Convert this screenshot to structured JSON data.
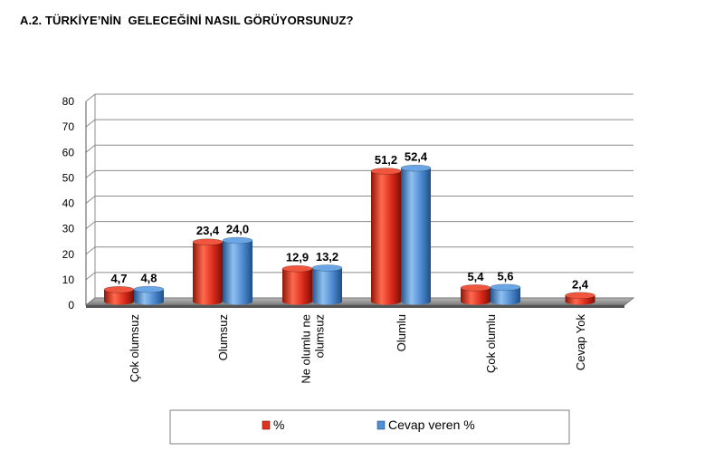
{
  "chart_data": {
    "type": "bar",
    "title": "A.2. TÜRKİYE’NİN  GELECEĞİNİ NASIL GÖRÜYORSUNUZ?",
    "categories": [
      "Çok olumsuz",
      "Olumsuz",
      "Ne olumlu ne olumsuz",
      "Olumlu",
      "Çok olumlu",
      "Cevap Yok"
    ],
    "category_lines": [
      [
        "Çok olumsuz"
      ],
      [
        "Olumsuz"
      ],
      [
        "Ne olumlu ne",
        "olumsuz"
      ],
      [
        "Olumlu"
      ],
      [
        "Çok olumlu"
      ],
      [
        "Cevap Yok"
      ]
    ],
    "series": [
      {
        "name": "%",
        "values": [
          4.7,
          23.4,
          12.9,
          51.2,
          5.4,
          2.4
        ],
        "labels": [
          "4,7",
          "23,4",
          "12,9",
          "51,2",
          "5,4",
          "2,4"
        ],
        "color": "#e0301e"
      },
      {
        "name": "Cevap veren %",
        "values": [
          4.8,
          24.0,
          13.2,
          52.4,
          5.6,
          null
        ],
        "labels": [
          "4,8",
          "24,0",
          "13,2",
          "52,4",
          "5,6",
          ""
        ],
        "color": "#4f8fd6"
      }
    ],
    "ylim": [
      0,
      80
    ],
    "yticks": [
      0,
      10,
      20,
      30,
      40,
      50,
      60,
      70,
      80
    ],
    "grid": true,
    "legend_position": "bottom"
  }
}
